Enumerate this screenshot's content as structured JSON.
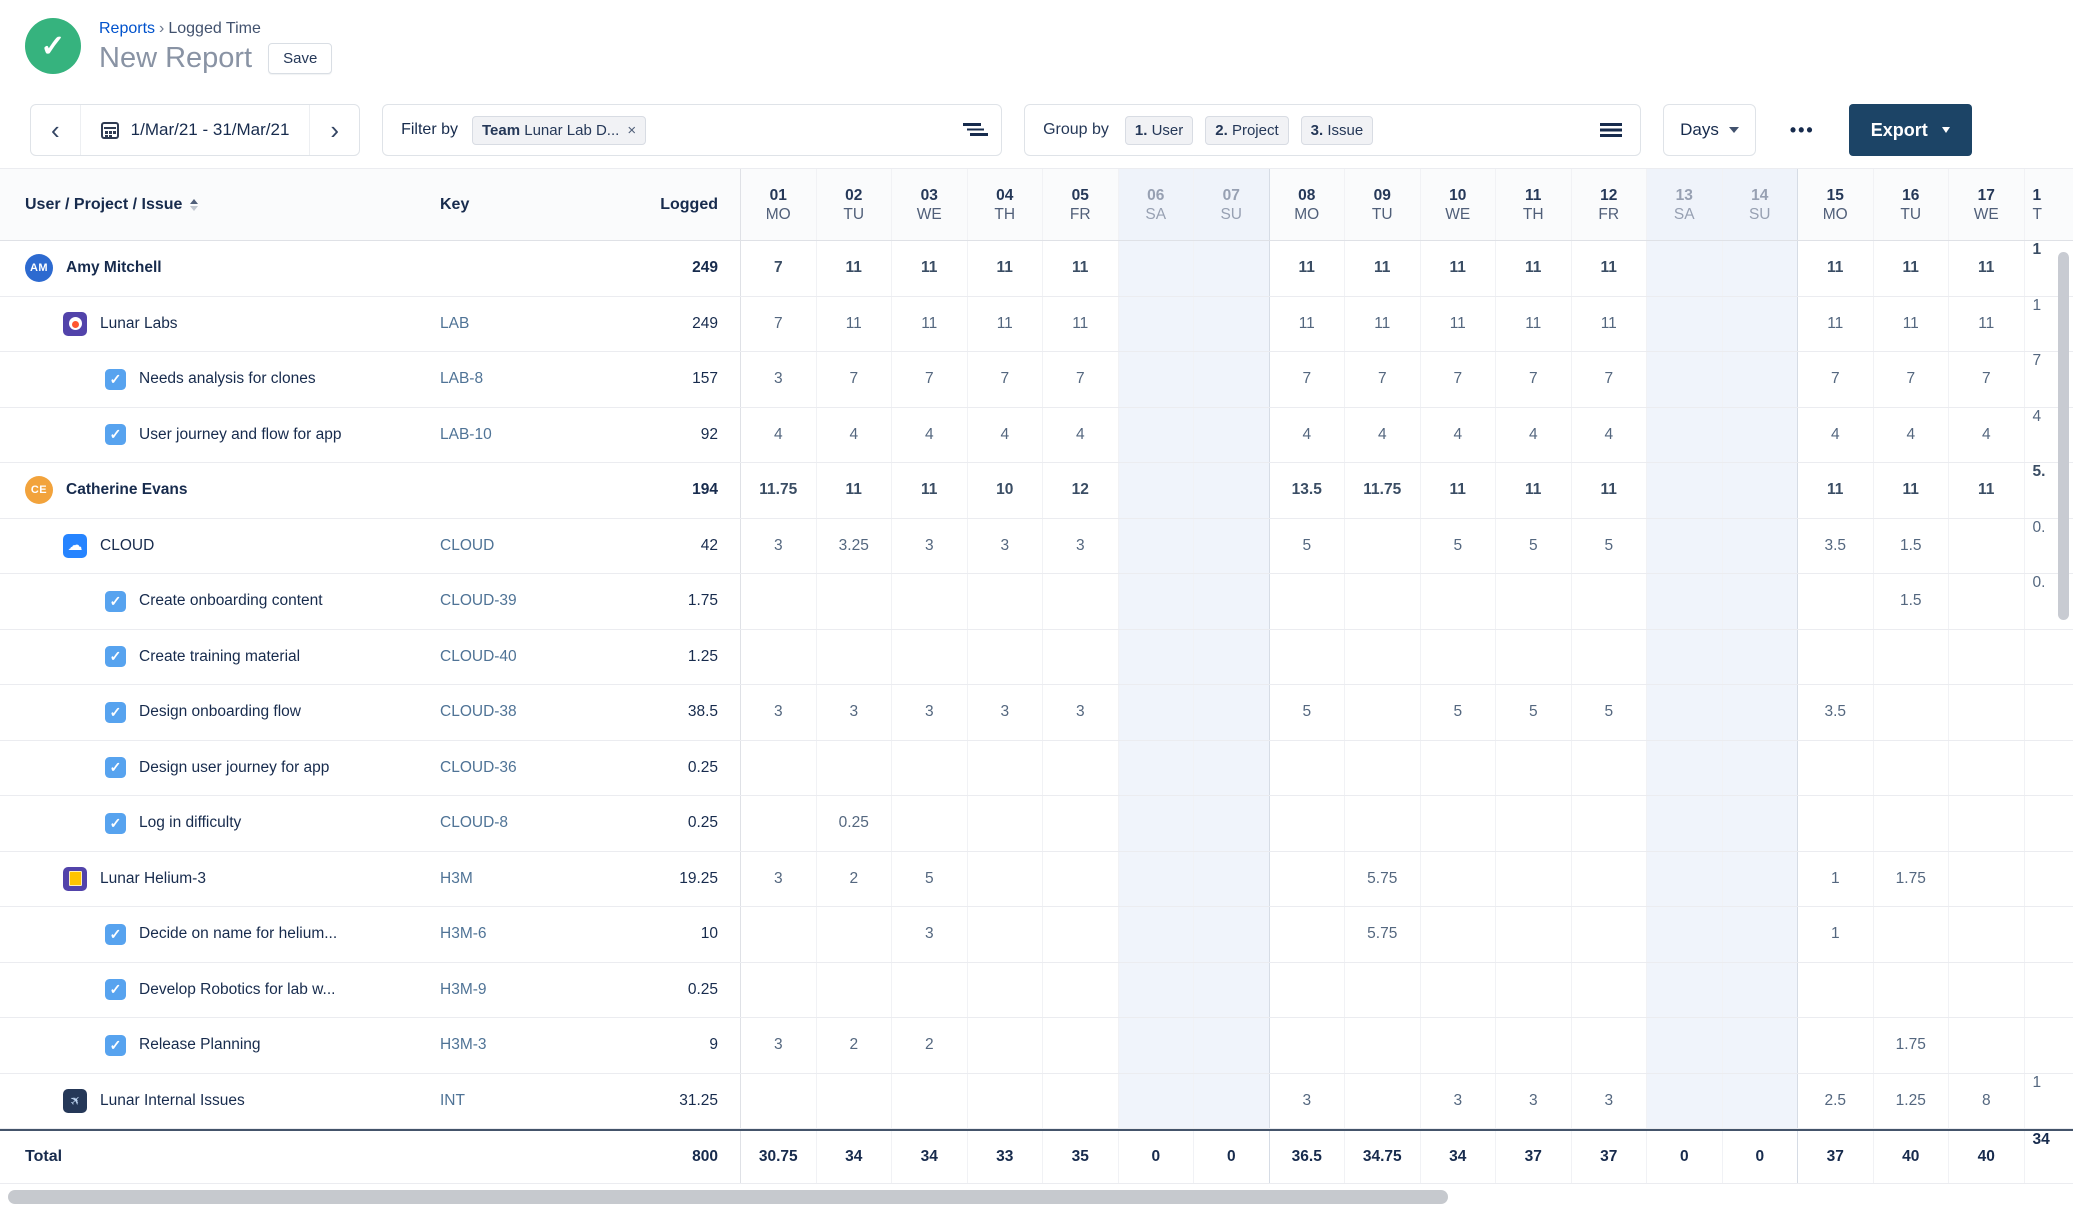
{
  "header": {
    "logo_check": "✓",
    "breadcrumb": {
      "link": "Reports",
      "sep": "›",
      "current": "Logged Time"
    },
    "title": "New Report",
    "save_label": "Save"
  },
  "toolbar": {
    "prev": "‹",
    "next": "›",
    "date_range": "1/Mar/21 - 31/Mar/21",
    "filter_label": "Filter by",
    "filter_chip": {
      "bold": "Team",
      "rest": " Lunar Lab D...",
      "close": "×"
    },
    "group_label": "Group by",
    "group_chips": [
      {
        "num": "1.",
        "label": " User"
      },
      {
        "num": "2.",
        "label": " Project"
      },
      {
        "num": "3.",
        "label": " Issue"
      }
    ],
    "view_mode": "Days",
    "more_label": "•••",
    "export_label": "Export",
    "export_color": "#1C4466"
  },
  "table": {
    "col_headers": {
      "tree": "User / Project / Issue",
      "key": "Key",
      "logged": "Logged"
    },
    "days": [
      {
        "num": "01",
        "dow": "MO",
        "first": true
      },
      {
        "num": "02",
        "dow": "TU"
      },
      {
        "num": "03",
        "dow": "WE"
      },
      {
        "num": "04",
        "dow": "TH"
      },
      {
        "num": "05",
        "dow": "FR"
      },
      {
        "num": "06",
        "dow": "SA",
        "weekend": true
      },
      {
        "num": "07",
        "dow": "SU",
        "weekend": true
      },
      {
        "num": "08",
        "dow": "MO",
        "week_start": true
      },
      {
        "num": "09",
        "dow": "TU"
      },
      {
        "num": "10",
        "dow": "WE"
      },
      {
        "num": "11",
        "dow": "TH"
      },
      {
        "num": "12",
        "dow": "FR"
      },
      {
        "num": "13",
        "dow": "SA",
        "weekend": true
      },
      {
        "num": "14",
        "dow": "SU",
        "weekend": true
      },
      {
        "num": "15",
        "dow": "MO",
        "week_start": true
      },
      {
        "num": "16",
        "dow": "TU"
      },
      {
        "num": "17",
        "dow": "WE"
      },
      {
        "num": "1",
        "dow": "T",
        "partial": true
      }
    ],
    "rows": [
      {
        "type": "user",
        "icon": "avatar",
        "initials": "AM",
        "avatar_color": "#2D6AD0",
        "name": "Amy Mitchell",
        "key": "",
        "logged": "249",
        "values": [
          "7",
          "11",
          "11",
          "11",
          "11",
          "",
          "",
          "11",
          "11",
          "11",
          "11",
          "11",
          "",
          "",
          "11",
          "11",
          "11",
          "1"
        ]
      },
      {
        "type": "project",
        "icon": "lab",
        "name": "Lunar Labs",
        "key": "LAB",
        "logged": "249",
        "values": [
          "7",
          "11",
          "11",
          "11",
          "11",
          "",
          "",
          "11",
          "11",
          "11",
          "11",
          "11",
          "",
          "",
          "11",
          "11",
          "11",
          "1"
        ]
      },
      {
        "type": "issue",
        "icon": "check",
        "name": "Needs analysis for clones",
        "key": "LAB-8",
        "logged": "157",
        "values": [
          "3",
          "7",
          "7",
          "7",
          "7",
          "",
          "",
          "7",
          "7",
          "7",
          "7",
          "7",
          "",
          "",
          "7",
          "7",
          "7",
          "7"
        ]
      },
      {
        "type": "issue",
        "icon": "check",
        "name": "User journey and flow for app",
        "key": "LAB-10",
        "logged": "92",
        "values": [
          "4",
          "4",
          "4",
          "4",
          "4",
          "",
          "",
          "4",
          "4",
          "4",
          "4",
          "4",
          "",
          "",
          "4",
          "4",
          "4",
          "4"
        ]
      },
      {
        "type": "user",
        "icon": "avatar",
        "initials": "CE",
        "avatar_color": "#F2A33C",
        "name": "Catherine Evans",
        "key": "",
        "logged": "194",
        "values": [
          "11.75",
          "11",
          "11",
          "10",
          "12",
          "",
          "",
          "13.5",
          "11.75",
          "11",
          "11",
          "11",
          "",
          "",
          "11",
          "11",
          "11",
          "5."
        ]
      },
      {
        "type": "project",
        "icon": "cloud",
        "name": "CLOUD",
        "key": "CLOUD",
        "logged": "42",
        "values": [
          "3",
          "3.25",
          "3",
          "3",
          "3",
          "",
          "",
          "5",
          "",
          "5",
          "5",
          "5",
          "",
          "",
          "3.5",
          "1.5",
          "",
          "0."
        ]
      },
      {
        "type": "issue",
        "icon": "check",
        "name": "Create onboarding content",
        "key": "CLOUD-39",
        "logged": "1.75",
        "values": [
          "",
          "",
          "",
          "",
          "",
          "",
          "",
          "",
          "",
          "",
          "",
          "",
          "",
          "",
          "",
          "1.5",
          "",
          "0."
        ]
      },
      {
        "type": "issue",
        "icon": "check",
        "name": "Create training material",
        "key": "CLOUD-40",
        "logged": "1.25",
        "values": [
          "",
          "",
          "",
          "",
          "",
          "",
          "",
          "",
          "",
          "",
          "",
          "",
          "",
          "",
          "",
          "",
          "",
          ""
        ]
      },
      {
        "type": "issue",
        "icon": "check",
        "name": "Design onboarding flow",
        "key": "CLOUD-38",
        "logged": "38.5",
        "values": [
          "3",
          "3",
          "3",
          "3",
          "3",
          "",
          "",
          "5",
          "",
          "5",
          "5",
          "5",
          "",
          "",
          "3.5",
          "",
          "",
          ""
        ]
      },
      {
        "type": "issue",
        "icon": "check",
        "name": "Design user journey for app",
        "key": "CLOUD-36",
        "logged": "0.25",
        "values": [
          "",
          "",
          "",
          "",
          "",
          "",
          "",
          "",
          "",
          "",
          "",
          "",
          "",
          "",
          "",
          "",
          "",
          ""
        ]
      },
      {
        "type": "issue",
        "icon": "check",
        "name": "Log in difficulty",
        "key": "CLOUD-8",
        "logged": "0.25",
        "values": [
          "",
          "0.25",
          "",
          "",
          "",
          "",
          "",
          "",
          "",
          "",
          "",
          "",
          "",
          "",
          "",
          "",
          "",
          ""
        ]
      },
      {
        "type": "project",
        "icon": "h3m",
        "name": "Lunar Helium-3",
        "key": "H3M",
        "logged": "19.25",
        "values": [
          "3",
          "2",
          "5",
          "",
          "",
          "",
          "",
          "",
          "5.75",
          "",
          "",
          "",
          "",
          "",
          "1",
          "1.75",
          "",
          ""
        ]
      },
      {
        "type": "issue",
        "icon": "check",
        "name": "Decide on name for helium...",
        "key": "H3M-6",
        "logged": "10",
        "values": [
          "",
          "",
          "3",
          "",
          "",
          "",
          "",
          "",
          "5.75",
          "",
          "",
          "",
          "",
          "",
          "1",
          "",
          "",
          ""
        ]
      },
      {
        "type": "issue",
        "icon": "check",
        "name": "Develop Robotics for lab w...",
        "key": "H3M-9",
        "logged": "0.25",
        "values": [
          "",
          "",
          "",
          "",
          "",
          "",
          "",
          "",
          "",
          "",
          "",
          "",
          "",
          "",
          "",
          "",
          "",
          ""
        ]
      },
      {
        "type": "issue",
        "icon": "check",
        "name": "Release Planning",
        "key": "H3M-3",
        "logged": "9",
        "values": [
          "3",
          "2",
          "2",
          "",
          "",
          "",
          "",
          "",
          "",
          "",
          "",
          "",
          "",
          "",
          "",
          "1.75",
          "",
          ""
        ]
      },
      {
        "type": "project",
        "icon": "int",
        "name": "Lunar Internal Issues",
        "key": "INT",
        "logged": "31.25",
        "values": [
          "",
          "",
          "",
          "",
          "",
          "",
          "",
          "3",
          "",
          "3",
          "3",
          "3",
          "",
          "",
          "2.5",
          "1.25",
          "8",
          "1"
        ]
      },
      {
        "type": "total",
        "icon": "none",
        "name": "Total",
        "key": "",
        "logged": "800",
        "values": [
          "30.75",
          "34",
          "34",
          "33",
          "35",
          "0",
          "0",
          "36.5",
          "34.75",
          "34",
          "37",
          "37",
          "0",
          "0",
          "37",
          "40",
          "40",
          "34"
        ]
      }
    ]
  }
}
